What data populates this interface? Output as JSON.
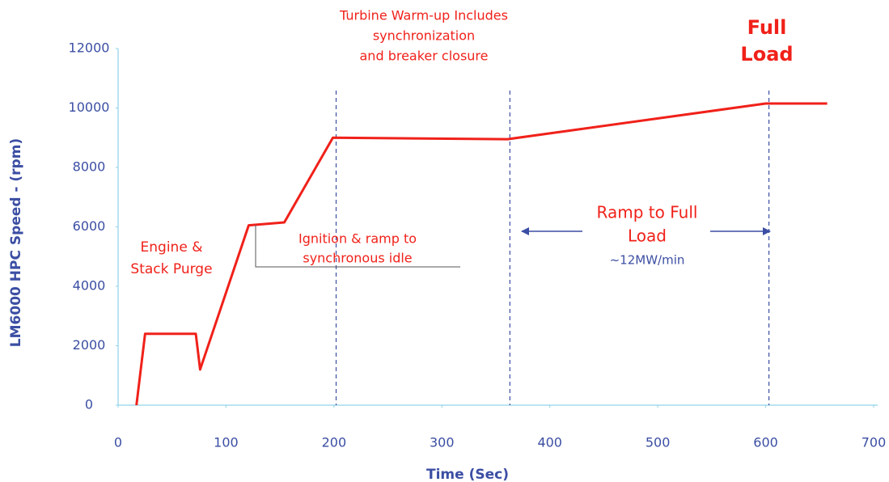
{
  "chart_data": {
    "type": "line",
    "x_label": "Time (Sec)",
    "y_label": "LM6000 HPC Speed -  (rpm)",
    "x": [
      17,
      25,
      72,
      76,
      121,
      154,
      199,
      361,
      600,
      657
    ],
    "series": [
      {
        "name": "HPC Speed",
        "color": "#f0211a",
        "values": [
          0,
          2400,
          2400,
          1200,
          6050,
          6150,
          9000,
          8950,
          10150,
          10150
        ]
      }
    ],
    "xlim": [
      0,
      700
    ],
    "xticks": [
      0,
      100,
      200,
      300,
      400,
      500,
      600,
      700
    ],
    "ylim": [
      0,
      12000
    ],
    "yticks": [
      0,
      2000,
      4000,
      6000,
      8000,
      10000,
      12000
    ],
    "vlines": [
      202,
      363,
      603
    ],
    "annotations": [
      {
        "lines": [
          "Turbine Warm-up Includes",
          "synchronization",
          "and breaker closure"
        ]
      },
      {
        "lines": [
          "Full",
          "Load"
        ]
      },
      {
        "lines": [
          "Engine &",
          "Stack Purge"
        ]
      },
      {
        "lines": [
          "Ignition & ramp to",
          "synchronous idle"
        ]
      },
      {
        "lines": [
          "Ramp to Full",
          "Load"
        ]
      },
      {
        "lines": [
          "~12MW/min"
        ]
      }
    ]
  }
}
